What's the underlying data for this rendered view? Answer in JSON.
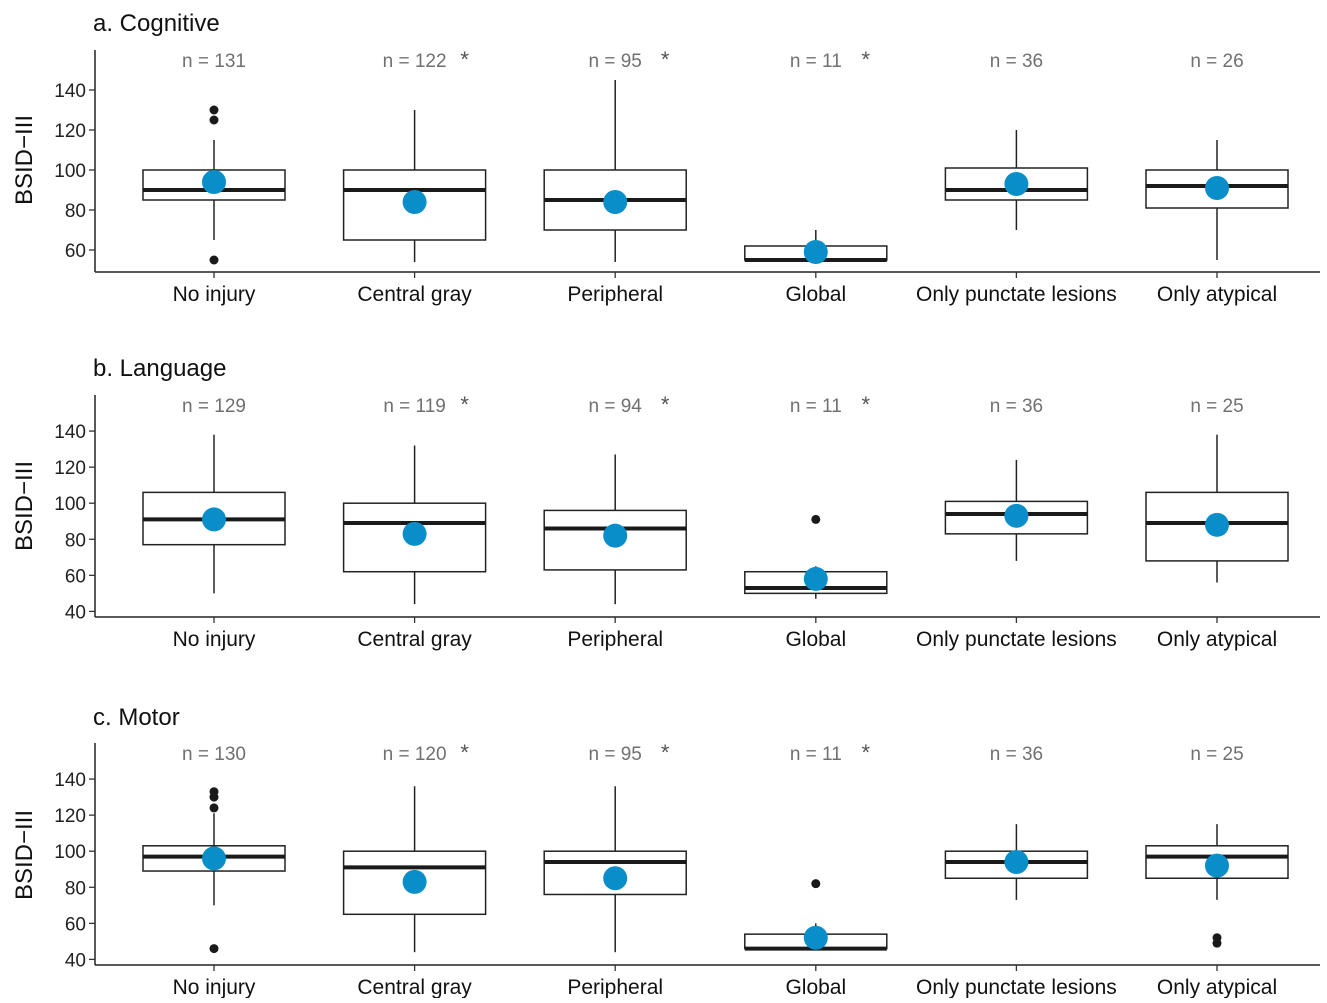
{
  "chart_data": [
    {
      "type": "boxplot",
      "title": "a. Cognitive",
      "ylabel": "BSID−III",
      "ylim": [
        50,
        160
      ],
      "yticks": [
        60,
        80,
        100,
        120,
        140
      ],
      "categories": [
        "No injury",
        "Central gray",
        "Peripheral",
        "Global",
        "Only punctate lesions",
        "Only atypical"
      ],
      "n_labels": [
        "n = 131",
        "n = 122",
        "n = 95",
        "n = 11",
        "n = 36",
        "n = 26"
      ],
      "significant": [
        false,
        true,
        true,
        true,
        false,
        false
      ],
      "star_symbol": "*",
      "boxes": [
        {
          "q1": 85,
          "median": 90,
          "q3": 100,
          "whisker_low": 65,
          "whisker_high": 115,
          "mean": 94,
          "outliers": [
            55,
            125,
            130
          ]
        },
        {
          "q1": 65,
          "median": 90,
          "q3": 100,
          "whisker_low": 54,
          "whisker_high": 130,
          "mean": 84,
          "outliers": []
        },
        {
          "q1": 70,
          "median": 85,
          "q3": 100,
          "whisker_low": 54,
          "whisker_high": 145,
          "mean": 84,
          "outliers": []
        },
        {
          "q1": 55,
          "median": 55,
          "q3": 62,
          "whisker_low": 55,
          "whisker_high": 70,
          "mean": 59,
          "outliers": []
        },
        {
          "q1": 85,
          "median": 90,
          "q3": 101,
          "whisker_low": 70,
          "whisker_high": 120,
          "mean": 93,
          "outliers": []
        },
        {
          "q1": 81,
          "median": 92,
          "q3": 100,
          "whisker_low": 55,
          "whisker_high": 115,
          "mean": 91,
          "outliers": []
        }
      ],
      "colors": {
        "mean": "#0a8ec9",
        "box": "#222222"
      }
    },
    {
      "type": "boxplot",
      "title": "b. Language",
      "ylabel": "BSID−III",
      "ylim": [
        38,
        160
      ],
      "yticks": [
        40,
        60,
        80,
        100,
        120,
        140
      ],
      "categories": [
        "No injury",
        "Central gray",
        "Peripheral",
        "Global",
        "Only punctate lesions",
        "Only atypical"
      ],
      "n_labels": [
        "n = 129",
        "n = 119",
        "n = 94",
        "n = 11",
        "n = 36",
        "n = 25"
      ],
      "significant": [
        false,
        true,
        true,
        true,
        false,
        false
      ],
      "star_symbol": "*",
      "boxes": [
        {
          "q1": 77,
          "median": 91,
          "q3": 106,
          "whisker_low": 50,
          "whisker_high": 138,
          "mean": 91,
          "outliers": []
        },
        {
          "q1": 62,
          "median": 89,
          "q3": 100,
          "whisker_low": 44,
          "whisker_high": 132,
          "mean": 83,
          "outliers": []
        },
        {
          "q1": 63,
          "median": 86,
          "q3": 96,
          "whisker_low": 44,
          "whisker_high": 127,
          "mean": 82,
          "outliers": []
        },
        {
          "q1": 50,
          "median": 53,
          "q3": 62,
          "whisker_low": 47,
          "whisker_high": 65,
          "mean": 58,
          "outliers": [
            91
          ]
        },
        {
          "q1": 83,
          "median": 94,
          "q3": 101,
          "whisker_low": 68,
          "whisker_high": 124,
          "mean": 93,
          "outliers": []
        },
        {
          "q1": 68,
          "median": 89,
          "q3": 106,
          "whisker_low": 56,
          "whisker_high": 138,
          "mean": 88,
          "outliers": []
        }
      ],
      "colors": {
        "mean": "#0a8ec9",
        "box": "#222222"
      }
    },
    {
      "type": "boxplot",
      "title": "c. Motor",
      "ylabel": "BSID−III",
      "ylim": [
        38,
        160
      ],
      "yticks": [
        40,
        60,
        80,
        100,
        120,
        140
      ],
      "categories": [
        "No injury",
        "Central gray",
        "Peripheral",
        "Global",
        "Only punctate lesions",
        "Only atypical"
      ],
      "n_labels": [
        "n = 130",
        "n = 120",
        "n = 95",
        "n = 11",
        "n = 36",
        "n = 25"
      ],
      "significant": [
        false,
        true,
        true,
        true,
        false,
        false
      ],
      "star_symbol": "*",
      "boxes": [
        {
          "q1": 89,
          "median": 97,
          "q3": 103,
          "whisker_low": 70,
          "whisker_high": 121,
          "mean": 96,
          "outliers": [
            46,
            124,
            130,
            133
          ]
        },
        {
          "q1": 65,
          "median": 91,
          "q3": 100,
          "whisker_low": 44,
          "whisker_high": 136,
          "mean": 83,
          "outliers": []
        },
        {
          "q1": 76,
          "median": 94,
          "q3": 100,
          "whisker_low": 44,
          "whisker_high": 136,
          "mean": 85,
          "outliers": []
        },
        {
          "q1": 46,
          "median": 46,
          "q3": 54,
          "whisker_low": 46,
          "whisker_high": 60,
          "mean": 52,
          "outliers": [
            82
          ]
        },
        {
          "q1": 85,
          "median": 94,
          "q3": 100,
          "whisker_low": 73,
          "whisker_high": 115,
          "mean": 94,
          "outliers": []
        },
        {
          "q1": 85,
          "median": 97,
          "q3": 103,
          "whisker_low": 73,
          "whisker_high": 115,
          "mean": 92,
          "outliers": [
            49,
            52
          ]
        }
      ],
      "colors": {
        "mean": "#0a8ec9",
        "box": "#222222"
      }
    }
  ]
}
